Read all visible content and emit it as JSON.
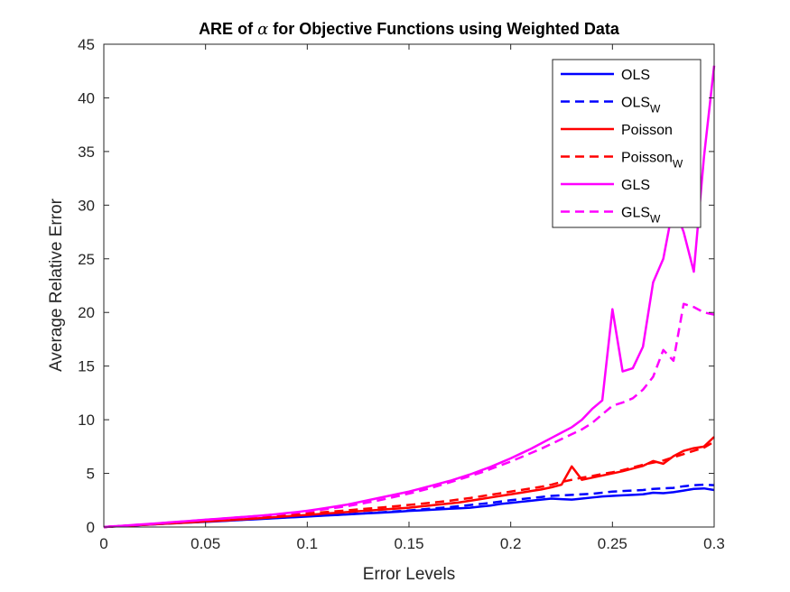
{
  "chart_data": {
    "type": "line",
    "title_parts": [
      "ARE of ",
      "α",
      " for Objective Functions using Weighted Data"
    ],
    "xlabel": "Error Levels",
    "ylabel": "Average Relative Error",
    "xlim": [
      0,
      0.3
    ],
    "ylim": [
      0,
      45
    ],
    "xticks": [
      0,
      0.05,
      0.1,
      0.15,
      0.2,
      0.25,
      0.3
    ],
    "xtick_labels": [
      "0",
      "0.05",
      "0.1",
      "0.15",
      "0.2",
      "0.25",
      "0.3"
    ],
    "yticks": [
      0,
      5,
      10,
      15,
      20,
      25,
      30,
      35,
      40,
      45
    ],
    "ytick_labels": [
      "0",
      "5",
      "10",
      "15",
      "20",
      "25",
      "30",
      "35",
      "40",
      "45"
    ],
    "grid": false,
    "legend_position": "top-right",
    "x": [
      0,
      0.005,
      0.01,
      0.015,
      0.02,
      0.025,
      0.03,
      0.035,
      0.04,
      0.045,
      0.05,
      0.055,
      0.06,
      0.065,
      0.07,
      0.075,
      0.08,
      0.085,
      0.09,
      0.095,
      0.1,
      0.105,
      0.11,
      0.115,
      0.12,
      0.125,
      0.13,
      0.135,
      0.14,
      0.145,
      0.15,
      0.155,
      0.16,
      0.165,
      0.17,
      0.175,
      0.18,
      0.185,
      0.19,
      0.195,
      0.2,
      0.205,
      0.21,
      0.215,
      0.22,
      0.225,
      0.23,
      0.235,
      0.24,
      0.245,
      0.25,
      0.255,
      0.26,
      0.265,
      0.27,
      0.275,
      0.28,
      0.285,
      0.29,
      0.295,
      0.3
    ],
    "series": [
      {
        "name": "OLS",
        "subscript": "",
        "color": "#0000ff",
        "dashed": false,
        "values": [
          0,
          0.05,
          0.11,
          0.15,
          0.2,
          0.25,
          0.3,
          0.35,
          0.4,
          0.44,
          0.48,
          0.53,
          0.58,
          0.63,
          0.68,
          0.73,
          0.78,
          0.83,
          0.88,
          0.93,
          0.98,
          1.03,
          1.08,
          1.13,
          1.18,
          1.23,
          1.28,
          1.33,
          1.38,
          1.43,
          1.5,
          1.55,
          1.6,
          1.65,
          1.7,
          1.75,
          1.8,
          1.9,
          2.0,
          2.15,
          2.25,
          2.35,
          2.45,
          2.55,
          2.65,
          2.6,
          2.55,
          2.65,
          2.75,
          2.85,
          2.9,
          2.95,
          3.0,
          3.05,
          3.2,
          3.15,
          3.25,
          3.4,
          3.55,
          3.6,
          3.45
        ]
      },
      {
        "name": "OLS",
        "subscript": "W",
        "color": "#0000ff",
        "dashed": true,
        "values": [
          0,
          0.05,
          0.11,
          0.16,
          0.21,
          0.26,
          0.31,
          0.36,
          0.41,
          0.45,
          0.5,
          0.55,
          0.6,
          0.65,
          0.7,
          0.75,
          0.8,
          0.85,
          0.9,
          0.95,
          1.0,
          1.05,
          1.1,
          1.15,
          1.2,
          1.25,
          1.3,
          1.36,
          1.42,
          1.48,
          1.55,
          1.62,
          1.7,
          1.78,
          1.86,
          1.95,
          2.05,
          2.15,
          2.25,
          2.38,
          2.5,
          2.6,
          2.7,
          2.8,
          2.9,
          2.95,
          3.0,
          3.05,
          3.1,
          3.2,
          3.3,
          3.35,
          3.4,
          3.45,
          3.55,
          3.6,
          3.65,
          3.8,
          3.9,
          3.95,
          3.9
        ]
      },
      {
        "name": "Poisson",
        "subscript": "",
        "color": "#ff0000",
        "dashed": false,
        "values": [
          0,
          0.05,
          0.11,
          0.16,
          0.21,
          0.26,
          0.31,
          0.36,
          0.41,
          0.46,
          0.52,
          0.57,
          0.62,
          0.68,
          0.74,
          0.8,
          0.86,
          0.93,
          1.0,
          1.07,
          1.13,
          1.2,
          1.27,
          1.33,
          1.4,
          1.47,
          1.53,
          1.6,
          1.67,
          1.73,
          1.8,
          1.9,
          2.0,
          2.1,
          2.2,
          2.3,
          2.45,
          2.6,
          2.75,
          2.9,
          3.05,
          3.2,
          3.35,
          3.5,
          3.7,
          3.95,
          5.65,
          4.4,
          4.6,
          4.8,
          5.0,
          5.2,
          5.45,
          5.7,
          6.15,
          5.9,
          6.6,
          7.1,
          7.35,
          7.5,
          8.4
        ]
      },
      {
        "name": "Poisson",
        "subscript": "W",
        "color": "#ff0000",
        "dashed": true,
        "values": [
          0,
          0.06,
          0.12,
          0.18,
          0.24,
          0.3,
          0.36,
          0.42,
          0.48,
          0.54,
          0.6,
          0.66,
          0.72,
          0.78,
          0.85,
          0.92,
          0.99,
          1.06,
          1.13,
          1.2,
          1.27,
          1.34,
          1.41,
          1.48,
          1.56,
          1.64,
          1.72,
          1.8,
          1.88,
          1.97,
          2.06,
          2.15,
          2.25,
          2.35,
          2.45,
          2.58,
          2.7,
          2.85,
          3.0,
          3.15,
          3.3,
          3.45,
          3.6,
          3.75,
          3.95,
          4.2,
          4.4,
          4.6,
          4.75,
          4.95,
          5.1,
          5.3,
          5.55,
          5.8,
          6.0,
          6.2,
          6.5,
          6.8,
          7.1,
          7.4,
          7.95
        ]
      },
      {
        "name": "GLS",
        "subscript": "",
        "color": "#ff00ff",
        "dashed": false,
        "values": [
          0,
          0.07,
          0.13,
          0.2,
          0.26,
          0.33,
          0.4,
          0.47,
          0.54,
          0.61,
          0.68,
          0.75,
          0.82,
          0.89,
          0.96,
          1.03,
          1.1,
          1.2,
          1.3,
          1.4,
          1.52,
          1.65,
          1.8,
          1.95,
          2.1,
          2.3,
          2.5,
          2.7,
          2.9,
          3.1,
          3.3,
          3.55,
          3.8,
          4.05,
          4.3,
          4.6,
          4.9,
          5.25,
          5.6,
          6.0,
          6.4,
          6.85,
          7.3,
          7.8,
          8.3,
          8.8,
          9.3,
          10.0,
          11.0,
          11.8,
          20.3,
          14.5,
          14.8,
          16.8,
          22.8,
          25.0,
          30.0,
          27.5,
          23.8,
          34.5,
          43.0
        ]
      },
      {
        "name": "GLS",
        "subscript": "W",
        "color": "#ff00ff",
        "dashed": true,
        "values": [
          0,
          0.06,
          0.12,
          0.19,
          0.25,
          0.32,
          0.39,
          0.46,
          0.53,
          0.6,
          0.67,
          0.74,
          0.81,
          0.88,
          0.95,
          1.02,
          1.1,
          1.18,
          1.27,
          1.36,
          1.46,
          1.57,
          1.69,
          1.82,
          1.96,
          2.12,
          2.3,
          2.48,
          2.68,
          2.9,
          3.12,
          3.35,
          3.6,
          3.88,
          4.16,
          4.45,
          4.75,
          5.05,
          5.4,
          5.75,
          6.1,
          6.5,
          6.9,
          7.3,
          7.75,
          8.2,
          8.65,
          9.1,
          9.7,
          10.5,
          11.3,
          11.6,
          12.0,
          12.8,
          14.0,
          16.5,
          15.5,
          20.8,
          20.5,
          20.0,
          19.8
        ]
      }
    ]
  }
}
